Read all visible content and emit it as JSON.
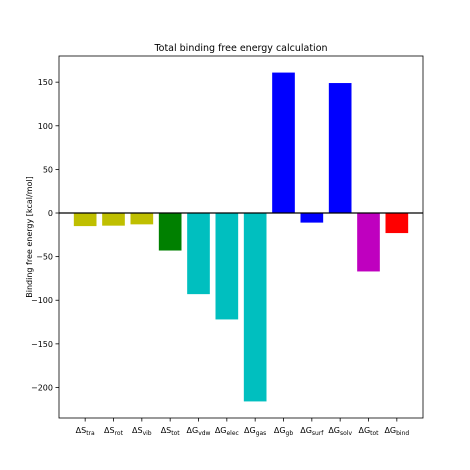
{
  "chart_data": {
    "type": "bar",
    "title": "Total binding free energy calculation",
    "xlabel": "",
    "ylabel": "Binding free energy [kcal/mol]",
    "ylim": [
      -235,
      180
    ],
    "yticks": [
      150,
      100,
      50,
      0,
      -50,
      -100,
      -150,
      -200
    ],
    "grid": false,
    "zero_line": true,
    "categories": [
      {
        "symbol": "ΔS",
        "sub": "tra"
      },
      {
        "symbol": "ΔS",
        "sub": "rot"
      },
      {
        "symbol": "ΔS",
        "sub": "vib"
      },
      {
        "symbol": "ΔS",
        "sub": "tot"
      },
      {
        "symbol": "ΔG",
        "sub": "vdw"
      },
      {
        "symbol": "ΔG",
        "sub": "elec"
      },
      {
        "symbol": "ΔG",
        "sub": "gas"
      },
      {
        "symbol": "ΔG",
        "sub": "gb"
      },
      {
        "symbol": "ΔG",
        "sub": "surf"
      },
      {
        "symbol": "ΔG",
        "sub": "solv"
      },
      {
        "symbol": "ΔG",
        "sub": "tot"
      },
      {
        "symbol": "ΔG",
        "sub": "bind"
      }
    ],
    "values": [
      -15,
      -14.5,
      -13,
      -43,
      -93,
      -122,
      -216,
      161,
      -11,
      149,
      -67,
      -23
    ],
    "colors": [
      "#bfbf00",
      "#bfbf00",
      "#bfbf00",
      "#008000",
      "#00bfbf",
      "#00bfbf",
      "#00bfbf",
      "#0000ff",
      "#0000ff",
      "#0000ff",
      "#bf00bf",
      "#ff0000"
    ]
  }
}
